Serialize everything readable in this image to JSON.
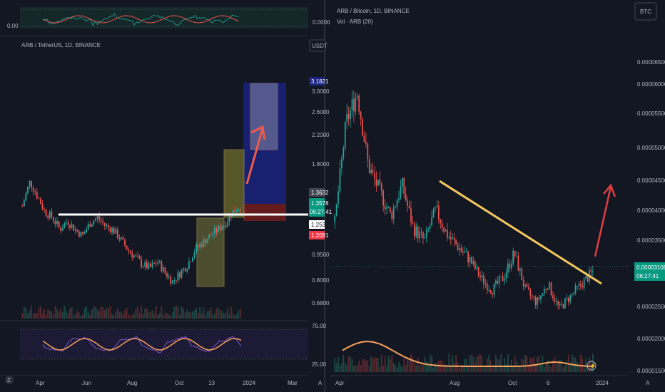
{
  "colors": {
    "bg": "#131722",
    "up": "#26a69a",
    "down": "#ef5350",
    "grid": "#1e222d",
    "text": "#b2b5be",
    "trend_white": "#ffffff",
    "trend_yellow": "#f6c85f",
    "arrow": "#e84a4f",
    "rsi": "#7e57c2",
    "ma": "#f5a25d",
    "blue_zone": "#1a237e",
    "green_badge": "#089981",
    "red_badge": "#f23645"
  },
  "icons": [
    "lightning-icon",
    "logo-icon"
  ],
  "left": {
    "title": "ARB / TetherUS, 1D, BINANCE",
    "currency": "USDT",
    "top_osc": {
      "left_label": "0.00",
      "right_label": "0.0000"
    },
    "price_ticks": [
      "3.0000",
      "2.6000",
      "2.2000",
      "1.8000",
      "0.9500",
      "0.8000",
      "0.6800"
    ],
    "badges": {
      "target": "3.1821",
      "p1": "1.3632",
      "p2": "1.3578",
      "countdown": "06:27:41",
      "p3": "1.2532",
      "stop": "1.2081"
    },
    "rsi_ticks": [
      "75.00",
      "25.00"
    ],
    "x_ticks": [
      "Apr",
      "Jun",
      "Aug",
      "Oct",
      "13",
      "2024",
      "Mar"
    ],
    "axis_letter": "A",
    "corner_mark": "Z"
  },
  "right": {
    "title": "ARB / Bitcoin, 1D, BINANCE",
    "subtitle": "Vol · ARB (20)",
    "currency": "BTC",
    "price_ticks": [
      "0.00006500",
      "0.00006000",
      "0.00005500",
      "0.00005000",
      "0.00004500",
      "0.00004000",
      "0.00003500",
      "0.00002500",
      "0.00002000",
      "0.00001500"
    ],
    "last_price": "0.00003108",
    "countdown": "06:27:41",
    "x_ticks": [
      "Apr",
      "Aug",
      "Oct",
      "6",
      "2024"
    ],
    "axis_letter": "A"
  },
  "chart_data": [
    {
      "type": "line",
      "title": "ARB / TetherUS, 1D, BINANCE",
      "x_axis": [
        "Apr",
        "Jun",
        "Aug",
        "Oct",
        "13",
        "2024",
        "Mar"
      ],
      "y_ticks": [
        3.0,
        2.6,
        2.2,
        1.8,
        0.95,
        0.8,
        0.68
      ],
      "series": [
        {
          "values": [
            1.35,
            1.6,
            1.45,
            1.3,
            1.25,
            1.15,
            1.22,
            1.15,
            1.1,
            1.2,
            1.25,
            1.18,
            1.15,
            1.08,
            1.0,
            0.95,
            0.9,
            0.88,
            0.92,
            0.85,
            0.8,
            0.85,
            0.9,
            1.0,
            1.05,
            1.1,
            1.15,
            1.2,
            1.3,
            1.35
          ]
        }
      ],
      "horizontal_level": 1.253,
      "target": 3.1821,
      "stop": 1.2081
    },
    {
      "type": "line",
      "title": "ARB / Bitcoin, 1D, BINANCE",
      "x_axis": [
        "Apr",
        "Aug",
        "Oct",
        "6",
        "2024"
      ],
      "series": [
        {
          "values": [
            3.9e-05,
            5.5e-05,
            6e-05,
            4.8e-05,
            4.4e-05,
            4e-05,
            4.5e-05,
            3.8e-05,
            3.6e-05,
            4.1e-05,
            3.7e-05,
            3.5e-05,
            3.3e-05,
            3e-05,
            2.8e-05,
            3e-05,
            3.4e-05,
            2.8e-05,
            2.6e-05,
            2.9e-05,
            2.5e-05,
            2.7e-05,
            2.9e-05,
            3.1e-05
          ]
        }
      ],
      "last": 3.108e-05
    }
  ]
}
